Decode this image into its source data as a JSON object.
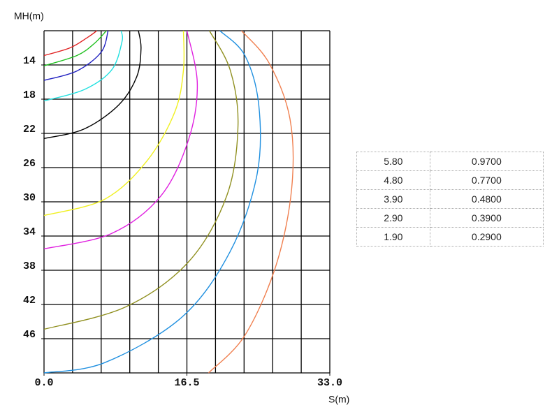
{
  "chart_data": {
    "type": "line",
    "ylabel": "MH(m)",
    "xlabel": "S(m)",
    "xlim": [
      0,
      33
    ],
    "xticks": [
      {
        "value": 0,
        "label": "0.0"
      },
      {
        "value": 16.5,
        "label": "16.5"
      },
      {
        "value": 33,
        "label": "33.0"
      }
    ],
    "ylim": [
      10,
      50
    ],
    "yticks": [
      14,
      18,
      22,
      26,
      30,
      34,
      38,
      42,
      46
    ],
    "y_inverted": true,
    "grid": true,
    "series": [
      {
        "color": "#e02020",
        "x": [
          0,
          3.0,
          5.0,
          6.1
        ],
        "values": [
          12.9,
          12.0,
          10.8,
          10
        ]
      },
      {
        "color": "#20c020",
        "x": [
          0,
          3.8,
          5.8,
          7.2
        ],
        "values": [
          14.1,
          12.9,
          11.5,
          10
        ]
      },
      {
        "color": "#2020c0",
        "x": [
          0,
          3.8,
          6.6,
          7.4
        ],
        "values": [
          15.8,
          14.7,
          12.5,
          10
        ]
      },
      {
        "color": "#20e0e0",
        "x": [
          0,
          4.6,
          7.8,
          9.0,
          8.9
        ],
        "values": [
          18.2,
          16.9,
          14.6,
          11.3,
          10
        ]
      },
      {
        "color": "#000000",
        "x": [
          0,
          4.6,
          8.6,
          10.7,
          11.2,
          10.9
        ],
        "values": [
          22.6,
          21.5,
          18.7,
          15.4,
          12.1,
          10
        ]
      },
      {
        "color": "#f0f020",
        "x": [
          0,
          7.0,
          11.9,
          15.1,
          16.1,
          16.1
        ],
        "values": [
          31.6,
          29.7,
          25.2,
          19.5,
          14.6,
          10
        ]
      },
      {
        "color": "#e020e0",
        "x": [
          0,
          7.8,
          13.5,
          16.7,
          17.7,
          16.5
        ],
        "values": [
          35.5,
          33.7,
          29.3,
          22.7,
          16.2,
          10
        ]
      },
      {
        "color": "#909020",
        "x": [
          0,
          9.4,
          16.7,
          21.1,
          22.4,
          21.5,
          19.1
        ],
        "values": [
          44.9,
          42.3,
          37.0,
          29.3,
          21.1,
          14.6,
          10
        ]
      },
      {
        "color": "#2090e0",
        "x": [
          0,
          7.0,
          15.9,
          21.5,
          24.6,
          24.8,
          23.2,
          20.3
        ],
        "values": [
          50,
          48.8,
          43.5,
          35.8,
          26.8,
          18.7,
          12.9,
          10
        ]
      },
      {
        "color": "#f08050",
        "x": [
          19.0,
          23.2,
          26.8,
          28.6,
          28.4,
          26.0,
          22.8
        ],
        "values": [
          50,
          45.6,
          37.4,
          28.4,
          20.3,
          13.8,
          10
        ]
      }
    ]
  },
  "table": {
    "rows": [
      [
        "5.80",
        "0.9700"
      ],
      [
        "4.80",
        "0.7700"
      ],
      [
        "3.90",
        "0.4800"
      ],
      [
        "2.90",
        "0.3900"
      ],
      [
        "1.90",
        "0.2900"
      ]
    ]
  }
}
